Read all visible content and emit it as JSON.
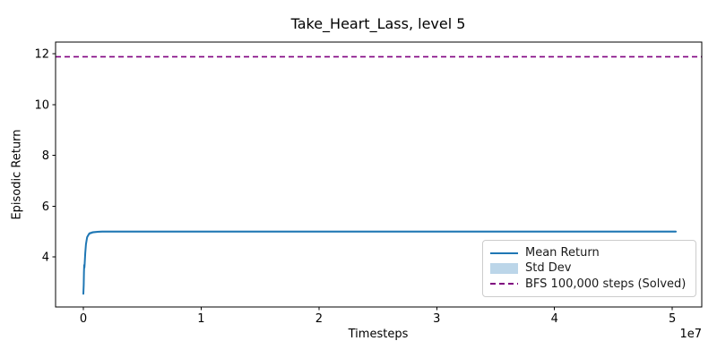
{
  "colors": {
    "background": "#ffffff",
    "mean_line": "#1f77b4",
    "std_band_fill": "#1f77b4",
    "std_band_solid": "#bcd6e9",
    "bfs_line": "#800080",
    "spine": "#000000",
    "legend_border": "#cccccc"
  },
  "chart_data": {
    "type": "line",
    "title": "Take_Heart_Lass, level 5",
    "xlabel": "Timesteps",
    "ylabel": "Episodic Return",
    "x_scale_offset": "1e7",
    "xlim": [
      -2360000,
      52500000
    ],
    "ylim": [
      2.03,
      12.46
    ],
    "grid": false,
    "legend_position": "lower right",
    "xticks": {
      "values": [
        0,
        10000000,
        20000000,
        30000000,
        40000000,
        50000000
      ],
      "labels": [
        "0",
        "1",
        "2",
        "3",
        "4",
        "5"
      ]
    },
    "yticks": {
      "values": [
        4,
        6,
        8,
        10,
        12
      ],
      "labels": [
        "4",
        "6",
        "8",
        "10",
        "12"
      ]
    },
    "series": [
      {
        "name": "Mean Return",
        "type": "line",
        "color": "#1f77b4",
        "linewidth": 2,
        "x": [
          0,
          30000,
          50000,
          70000,
          90000,
          110000,
          160000,
          220000,
          320000,
          500000,
          800000,
          1200000,
          1600000,
          3000000,
          10000000,
          20000000,
          30000000,
          40000000,
          50300000
        ],
        "y": [
          2.55,
          2.9,
          3.4,
          3.68,
          3.58,
          3.72,
          4.15,
          4.5,
          4.78,
          4.92,
          4.97,
          4.99,
          5.0,
          5.0,
          5.0,
          5.0,
          5.0,
          5.0,
          5.0
        ],
        "std": [
          0.1,
          0.15,
          0.15,
          0.15,
          0.15,
          0.15,
          0.12,
          0.1,
          0.08,
          0.06,
          0.05,
          0.04,
          0.04,
          0.04,
          0.04,
          0.04,
          0.04,
          0.04,
          0.04
        ]
      },
      {
        "name": "Std Dev",
        "type": "band",
        "color": "#1f77b4",
        "opacity": 0.3,
        "from_series": "Mean Return"
      },
      {
        "name": "BFS 100,000 steps (Solved)",
        "type": "hline",
        "color": "#800080",
        "linestyle": "dashed",
        "y": 11.88
      }
    ],
    "legend": [
      {
        "label": "Mean Return",
        "swatch": "line",
        "color": "#1f77b4"
      },
      {
        "label": "Std Dev",
        "swatch": "patch",
        "color": "#bcd6e9"
      },
      {
        "label": "BFS 100,000 steps (Solved)",
        "swatch": "dashed",
        "color": "#800080"
      }
    ]
  }
}
